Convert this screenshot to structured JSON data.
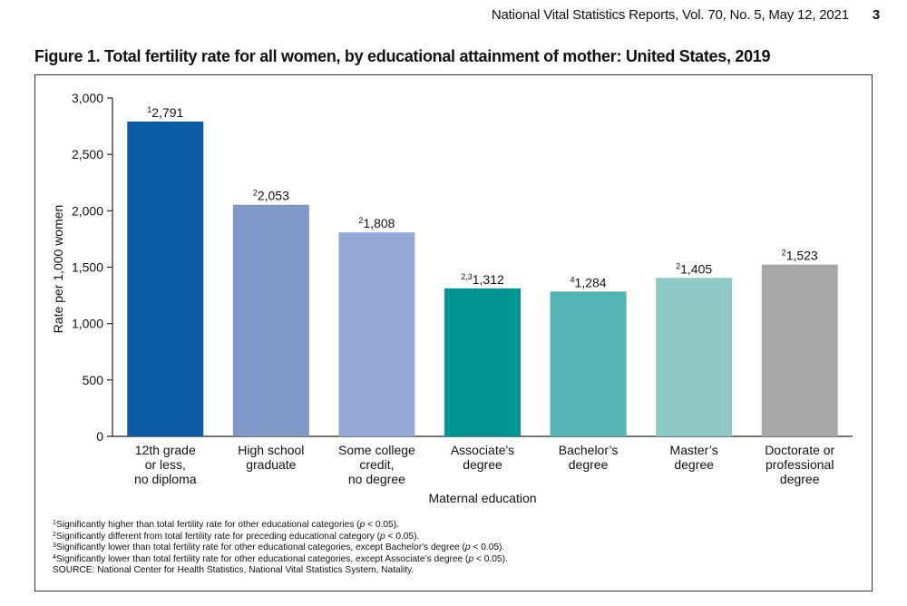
{
  "header": {
    "running_title": "National Vital Statistics Reports, Vol. 70, No. 5, May 12, 2021",
    "page_number": "3"
  },
  "figure": {
    "title": "Figure 1. Total fertility rate for all women, by educational attainment of mother: United States, 2019"
  },
  "chart_data": {
    "type": "bar",
    "title": "Total fertility rate for all women, by educational attainment of mother: United States, 2019",
    "xlabel": "Maternal education",
    "ylabel": "Rate per 1,000 women",
    "ylim": [
      0,
      3000
    ],
    "yticks": [
      0,
      500,
      1000,
      1500,
      2000,
      2500,
      3000
    ],
    "ytick_labels": [
      "0",
      "500",
      "1,000",
      "1,500",
      "2,000",
      "2,500",
      "3,000"
    ],
    "grid": false,
    "categories": [
      [
        "12th grade",
        "or less,",
        "no diploma"
      ],
      [
        "High school",
        "graduate"
      ],
      [
        "Some college",
        "credit,",
        "no degree"
      ],
      [
        "Associate's",
        "degree"
      ],
      [
        "Bachelor’s",
        "degree"
      ],
      [
        "Master’s",
        "degree"
      ],
      [
        "Doctorate or",
        "professional",
        "degree"
      ]
    ],
    "values": [
      2791,
      2053,
      1808,
      1312,
      1284,
      1405,
      1523
    ],
    "value_labels": [
      "2,791",
      "2,053",
      "1,808",
      "1,312",
      "1,284",
      "1,405",
      "1,523"
    ],
    "footnote_marks": [
      "1",
      "2",
      "2",
      "2,3",
      "4",
      "2",
      "2"
    ],
    "colors": [
      "#0b5aa6",
      "#7f98c8",
      "#97a9d6",
      "#009590",
      "#55b5b4",
      "#8ec8c7",
      "#a6a7a9"
    ]
  },
  "notes": {
    "n1": {
      "mark": "1",
      "text": "Significantly higher than total fertility rate for other educational categories (",
      "p": "p",
      "tail": " < 0.05)."
    },
    "n2": {
      "mark": "2",
      "text": "Significantly different from total fertility rate for preceding educational category (",
      "p": "p",
      "tail": " < 0.05)."
    },
    "n3": {
      "mark": "3",
      "text": "Significantly lower than total fertility rate for other educational categories, except Bachelor's degree  (",
      "p": "p",
      "tail": " < 0.05)."
    },
    "n4": {
      "mark": "4",
      "text": "Significantly lower than total fertility rate for other educational categories, except Associate’s degree (",
      "p": "p",
      "tail": " < 0.05)."
    },
    "source": "SOURCE: National Center for Health Statistics, National Vital Statistics System, Natality."
  }
}
